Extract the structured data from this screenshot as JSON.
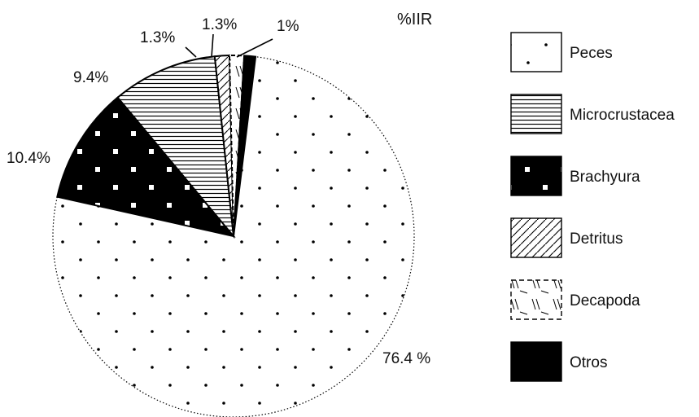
{
  "chart_data": {
    "type": "pie",
    "title": "%IIR",
    "slices": [
      {
        "name": "Peces",
        "value": 76.4,
        "label": "76.4 %",
        "pattern": "dots"
      },
      {
        "name": "Brachyura",
        "value": 10.4,
        "label": "10.4%",
        "pattern": "brachyura"
      },
      {
        "name": "Microcrustacea",
        "value": 9.4,
        "label": "9.4%",
        "pattern": "hlines"
      },
      {
        "name": "Detritus",
        "value": 1.3,
        "label": "1.3%",
        "pattern": "diag"
      },
      {
        "name": "Decapoda",
        "value": 1.3,
        "label": "1.3%",
        "pattern": "decapoda"
      },
      {
        "name": "Otros",
        "value": 1.0,
        "label": "1%",
        "pattern": "solid"
      }
    ],
    "legend": [
      "Peces",
      "Microcrustacea",
      "Brachyura",
      "Detritus",
      "Decapoda",
      "Otros"
    ],
    "legend_position": "right",
    "colors": {
      "fill": "#ffffff",
      "ink": "#000000"
    }
  }
}
